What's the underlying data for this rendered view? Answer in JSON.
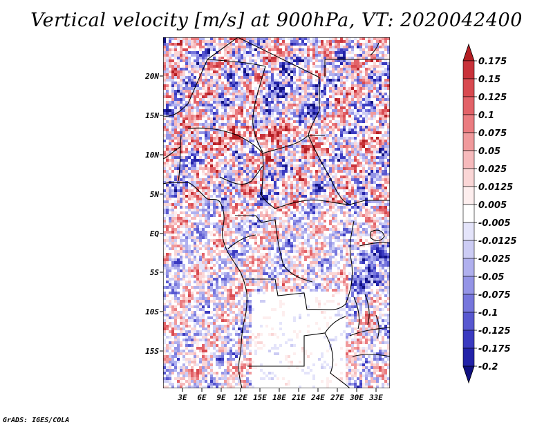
{
  "title": "Vertical velocity [m/s] at 900hPa, VT: 2020042400",
  "credit": "GrADS: IGES/COLA",
  "map": {
    "lat_ticks": [
      "20N",
      "15N",
      "10N",
      "5N",
      "EQ",
      "5S",
      "10S",
      "15S"
    ],
    "lon_ticks": [
      "3E",
      "6E",
      "9E",
      "12E",
      "15E",
      "18E",
      "21E",
      "24E",
      "27E",
      "30E",
      "33E"
    ]
  },
  "colorbar": {
    "labels": [
      "0.175",
      "0.15",
      "0.125",
      "0.1",
      "0.075",
      "0.05",
      "0.025",
      "0.0125",
      "0.005",
      "-0.005",
      "-0.0125",
      "-0.025",
      "-0.05",
      "-0.075",
      "-0.1",
      "-0.125",
      "-0.175",
      "-0.2"
    ],
    "colors": [
      "#b41e23",
      "#c8323a",
      "#d84a50",
      "#e26268",
      "#ea7c80",
      "#f09a9c",
      "#f6babc",
      "#fad6d6",
      "#fdeeee",
      "#ffffff",
      "#e4e4fa",
      "#ccccf4",
      "#b0b0ee",
      "#9494e6",
      "#7676dc",
      "#5858d0",
      "#3a3ac0",
      "#2222a8",
      "#101080"
    ]
  }
}
